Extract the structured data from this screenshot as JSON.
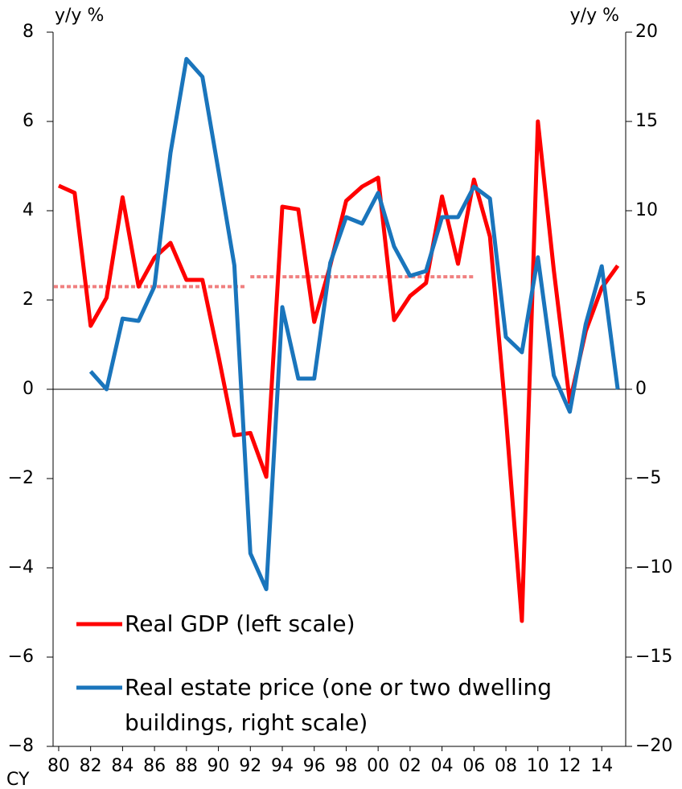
{
  "chart_data": {
    "type": "line",
    "y_label": "y/y %",
    "y2_label": "y/y %",
    "x_label": "CY",
    "x": [
      1980,
      1981,
      1982,
      1983,
      1984,
      1985,
      1986,
      1987,
      1988,
      1989,
      1990,
      1991,
      1992,
      1993,
      1994,
      1995,
      1996,
      1997,
      1998,
      1999,
      2000,
      2001,
      2002,
      2003,
      2004,
      2005,
      2006,
      2007,
      2008,
      2009,
      2010,
      2011,
      2012,
      2013,
      2014,
      2015
    ],
    "xlim": [
      1979.65,
      2015.5
    ],
    "xticks": [
      {
        "value": 1980,
        "label": "80"
      },
      {
        "value": 1982,
        "label": "82"
      },
      {
        "value": 1984,
        "label": "84"
      },
      {
        "value": 1986,
        "label": "86"
      },
      {
        "value": 1988,
        "label": "88"
      },
      {
        "value": 1990,
        "label": "90"
      },
      {
        "value": 1992,
        "label": "92"
      },
      {
        "value": 1994,
        "label": "94"
      },
      {
        "value": 1996,
        "label": "96"
      },
      {
        "value": 1998,
        "label": "98"
      },
      {
        "value": 2000,
        "label": "00"
      },
      {
        "value": 2002,
        "label": "02"
      },
      {
        "value": 2004,
        "label": "04"
      },
      {
        "value": 2006,
        "label": "06"
      },
      {
        "value": 2008,
        "label": "08"
      },
      {
        "value": 2010,
        "label": "10"
      },
      {
        "value": 2012,
        "label": "12"
      },
      {
        "value": 2014,
        "label": "14"
      }
    ],
    "ylim": [
      -8,
      8
    ],
    "yticks": [
      {
        "value": -8,
        "label": "−8"
      },
      {
        "value": -6,
        "label": "−6"
      },
      {
        "value": -4,
        "label": "−4"
      },
      {
        "value": -2,
        "label": "−2"
      },
      0,
      2,
      4,
      6,
      8
    ],
    "y2lim": [
      -20,
      20
    ],
    "y2ticks": [
      {
        "value": -20,
        "label": "−20"
      },
      {
        "value": -15,
        "label": "−15"
      },
      {
        "value": -10,
        "label": "−10"
      },
      {
        "value": -5,
        "label": "−5"
      },
      0,
      5,
      10,
      15,
      20
    ],
    "zero_line": true,
    "series": [
      {
        "name": "Real GDP (left scale)",
        "color": "#ff0000",
        "axis": "y",
        "values": [
          4.56,
          4.4,
          1.42,
          2.05,
          4.3,
          2.3,
          2.95,
          3.28,
          2.45,
          2.45,
          0.75,
          -1.03,
          -0.98,
          -1.96,
          4.09,
          4.03,
          1.51,
          2.77,
          4.22,
          4.54,
          4.74,
          1.55,
          2.09,
          2.38,
          4.32,
          2.81,
          4.7,
          3.42,
          -0.6,
          -5.19,
          6.0,
          2.67,
          -0.29,
          1.3,
          2.27,
          2.77
        ]
      },
      {
        "name": "Real estate price (one or two dwelling buildings, right scale)",
        "color": "#1a75bc",
        "axis": "y2",
        "values": [
          null,
          null,
          1.0,
          0,
          3.96,
          3.83,
          5.77,
          13.24,
          18.5,
          17.5,
          12.25,
          6.94,
          -9.19,
          -11.2,
          4.6,
          0.6,
          0.6,
          7.07,
          9.64,
          9.28,
          11.0,
          8.0,
          6.35,
          6.62,
          9.64,
          9.64,
          11.35,
          10.68,
          2.93,
          2.07,
          7.39,
          0.77,
          -1.26,
          3.65,
          6.89,
          0
        ]
      }
    ],
    "averages": [
      {
        "x": [
          1979.7,
          1991.7
        ],
        "value": 2.3
      },
      {
        "x": [
          1992,
          2006
        ],
        "value": 2.52
      }
    ],
    "averages_color": "#f08080"
  }
}
